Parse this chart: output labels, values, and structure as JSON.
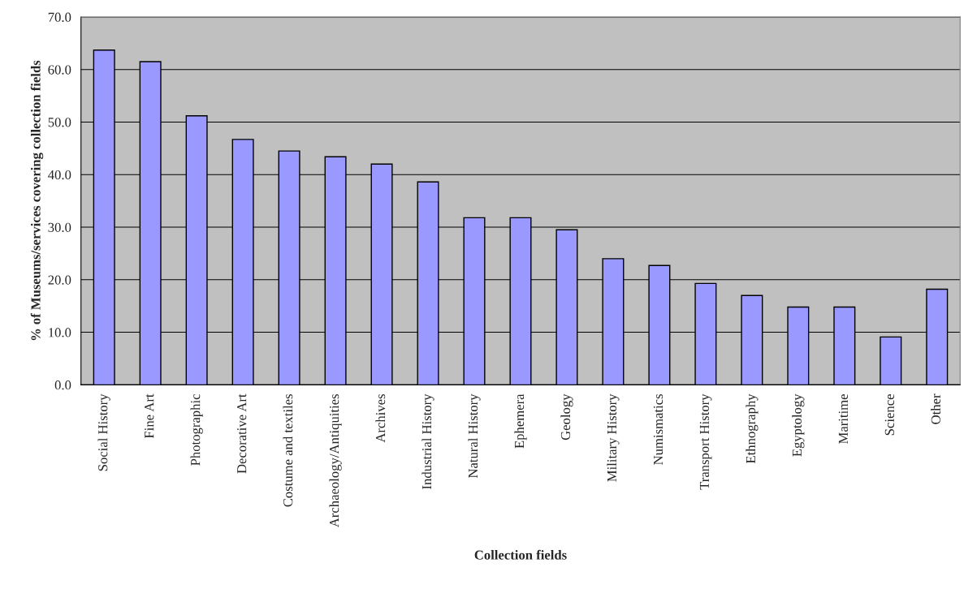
{
  "chart_data": {
    "type": "bar",
    "xlabel": "Collection fields",
    "ylabel": "% of Museums/services covering collection fields",
    "categories": [
      "Social History",
      "Fine Art",
      "Photographic",
      "Decorative Art",
      "Costume and textiles",
      "Archaeology/Antiquities",
      "Archives",
      "Industrial History",
      "Natural History",
      "Ephemera",
      "Geology",
      "Military History",
      "Numismatics",
      "Transport History",
      "Ethnography",
      "Egyptology",
      "Maritime",
      "Science",
      "Other"
    ],
    "values": [
      63.7,
      61.5,
      51.2,
      46.7,
      44.5,
      43.4,
      42.0,
      38.6,
      31.8,
      31.8,
      29.5,
      24.0,
      22.7,
      19.3,
      17.0,
      14.8,
      14.8,
      9.1,
      18.2
    ],
    "color": "#9999ff",
    "ylim": [
      0,
      70
    ],
    "yticks": [
      {
        "value": 0,
        "label": "0.0"
      },
      {
        "value": 10,
        "label": "10.0"
      },
      {
        "value": 20,
        "label": "20.0"
      },
      {
        "value": 30,
        "label": "30.0"
      },
      {
        "value": 40,
        "label": "40.0"
      },
      {
        "value": 50,
        "label": "50.0"
      },
      {
        "value": 60,
        "label": "60.0"
      },
      {
        "value": 70,
        "label": "70.0"
      }
    ],
    "grid": "y",
    "legend": false
  }
}
